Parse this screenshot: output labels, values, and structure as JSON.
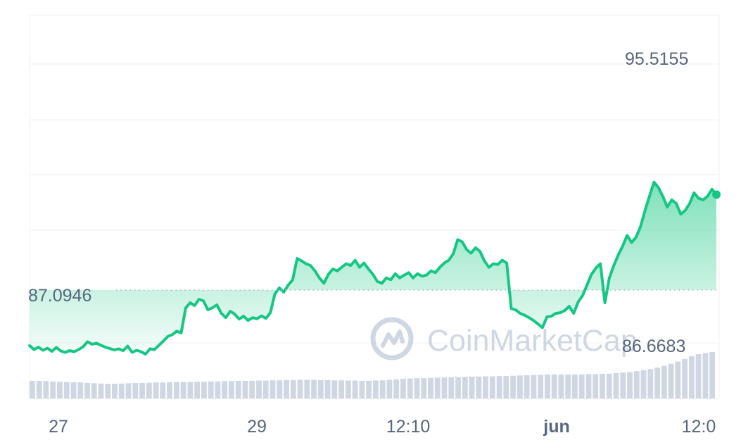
{
  "chart_data": {
    "type": "area",
    "ylim": [
      85.8,
      96.6
    ],
    "x_tick_labels": [
      "27",
      "29",
      "12:10",
      "jun",
      "12:0"
    ],
    "annotations": {
      "max_label": "95.5155",
      "baseline_label": "87.0946",
      "volume_label": "86.6683"
    },
    "watermark": "CoinMarketCap",
    "grid": true,
    "colors": {
      "line": "#16c784",
      "volume": "#cfd6e4",
      "grid": "#eff2f5",
      "text": "#58667e",
      "baseline": "#a6b0c3",
      "watermark": "#cfd6e4"
    },
    "series": [
      {
        "values": [
          87.29,
          87.18,
          87.25,
          87.16,
          87.22,
          87.13,
          87.24,
          87.14,
          87.1,
          87.15,
          87.12,
          87.18,
          87.26,
          87.4,
          87.33,
          87.36,
          87.3,
          87.25,
          87.21,
          87.17,
          87.2,
          87.15,
          87.28,
          87.1,
          87.16,
          87.12,
          87.05,
          87.2,
          87.18,
          87.3,
          87.42,
          87.55,
          87.6,
          87.7,
          87.65,
          88.35,
          88.5,
          88.42,
          88.6,
          88.55,
          88.3,
          88.36,
          88.44,
          88.2,
          88.08,
          88.26,
          88.18,
          88.04,
          88.12,
          88.0,
          88.08,
          88.05,
          88.13,
          88.06,
          88.22,
          88.75,
          88.92,
          88.8,
          89.0,
          89.15,
          89.75,
          89.68,
          89.6,
          89.55,
          89.4,
          89.2,
          89.05,
          89.3,
          89.45,
          89.4,
          89.5,
          89.6,
          89.55,
          89.7,
          89.5,
          89.62,
          89.45,
          89.3,
          89.1,
          89.05,
          89.2,
          89.15,
          89.32,
          89.2,
          89.28,
          89.35,
          89.2,
          89.32,
          89.25,
          89.28,
          89.4,
          89.35,
          89.5,
          89.62,
          89.7,
          89.88,
          90.28,
          90.22,
          90.0,
          89.9,
          90.05,
          89.95,
          89.68,
          89.5,
          89.6,
          89.58,
          89.7,
          89.62,
          88.34,
          88.3,
          88.2,
          88.15,
          88.08,
          88.0,
          87.9,
          87.8,
          88.1,
          88.12,
          88.2,
          88.22,
          88.28,
          88.4,
          88.2,
          88.52,
          88.7,
          89.0,
          89.3,
          89.48,
          89.6,
          88.5,
          89.2,
          89.55,
          89.85,
          90.1,
          90.4,
          90.2,
          90.35,
          90.65,
          91.1,
          91.5,
          91.9,
          91.75,
          91.5,
          91.2,
          91.4,
          91.3,
          91.0,
          91.1,
          91.3,
          91.6,
          91.45,
          91.4,
          91.5,
          91.7,
          91.55
        ]
      }
    ],
    "volume": [
      0.66,
      0.66,
      0.65,
      0.64,
      0.63,
      0.62,
      0.61,
      0.6,
      0.58,
      0.57,
      0.56,
      0.55,
      0.55,
      0.56,
      0.57,
      0.58,
      0.58,
      0.59,
      0.6,
      0.6,
      0.61,
      0.62,
      0.62,
      0.62,
      0.63,
      0.63,
      0.64,
      0.64,
      0.65,
      0.65,
      0.66,
      0.66,
      0.66,
      0.67,
      0.67,
      0.68,
      0.68,
      0.69,
      0.69,
      0.7,
      0.7,
      0.7,
      0.69,
      0.69,
      0.68,
      0.68,
      0.67,
      0.67,
      0.66,
      0.66,
      0.67,
      0.68,
      0.7,
      0.72,
      0.74,
      0.75,
      0.76,
      0.76,
      0.77,
      0.78,
      0.79,
      0.8,
      0.8,
      0.81,
      0.82,
      0.82,
      0.83,
      0.83,
      0.84,
      0.84,
      0.85,
      0.86,
      0.87,
      0.88,
      0.89,
      0.9,
      0.9,
      0.9,
      0.9,
      0.9,
      0.9,
      0.91,
      0.91,
      0.92,
      0.93,
      0.95,
      0.97,
      0.99,
      1.02,
      1.06,
      1.1,
      1.16,
      1.22,
      1.3,
      1.38,
      1.48,
      1.58,
      1.66,
      1.7,
      1.74
    ]
  }
}
